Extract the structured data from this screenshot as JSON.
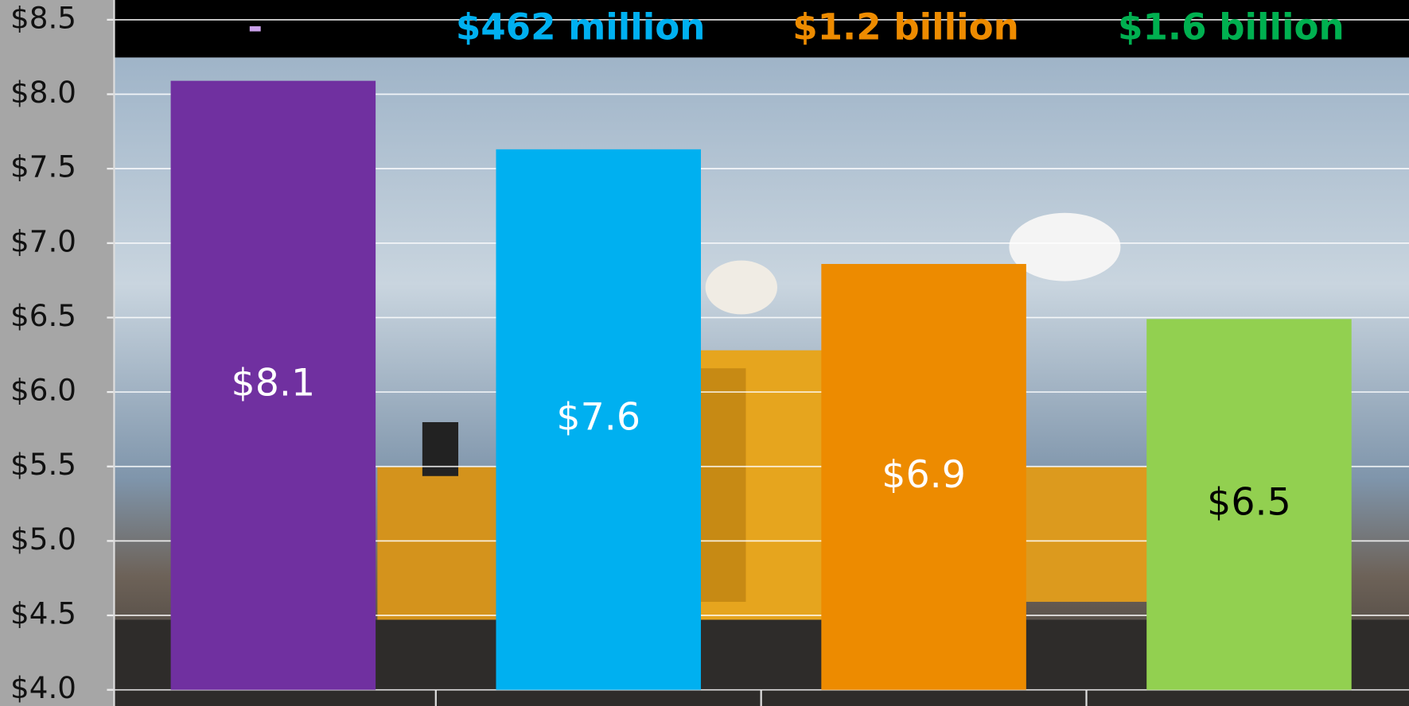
{
  "chart_data": {
    "type": "bar",
    "categories": [
      "-",
      "$462 million",
      "$1.2 billion",
      "$1.6 billion"
    ],
    "category_colors": [
      "#c9a0e8",
      "#00b0f0",
      "#ed8b00",
      "#00b050"
    ],
    "values": [
      8.09,
      7.63,
      6.86,
      6.49
    ],
    "value_labels": [
      "$8.1",
      "$7.6",
      "$6.9",
      "$6.5"
    ],
    "colors": [
      "#7030a0",
      "#00b0f0",
      "#ed8b00",
      "#92d050"
    ],
    "value_label_colors": [
      "#ffffff",
      "#ffffff",
      "#ffffff",
      "#000000"
    ],
    "ylim": [
      4.0,
      8.5
    ],
    "yticks": [
      {
        "value": 4.0,
        "label": "$4.0"
      },
      {
        "value": 4.5,
        "label": "$4.5"
      },
      {
        "value": 5.0,
        "label": "$5.0"
      },
      {
        "value": 5.5,
        "label": "$5.5"
      },
      {
        "value": 6.0,
        "label": "$6.0"
      },
      {
        "value": 6.5,
        "label": "$6.5"
      },
      {
        "value": 7.0,
        "label": "$7.0"
      },
      {
        "value": 7.5,
        "label": "$7.5"
      },
      {
        "value": 8.0,
        "label": "$8.0"
      },
      {
        "value": 8.5,
        "label": "$8.5"
      }
    ],
    "grid": true
  }
}
